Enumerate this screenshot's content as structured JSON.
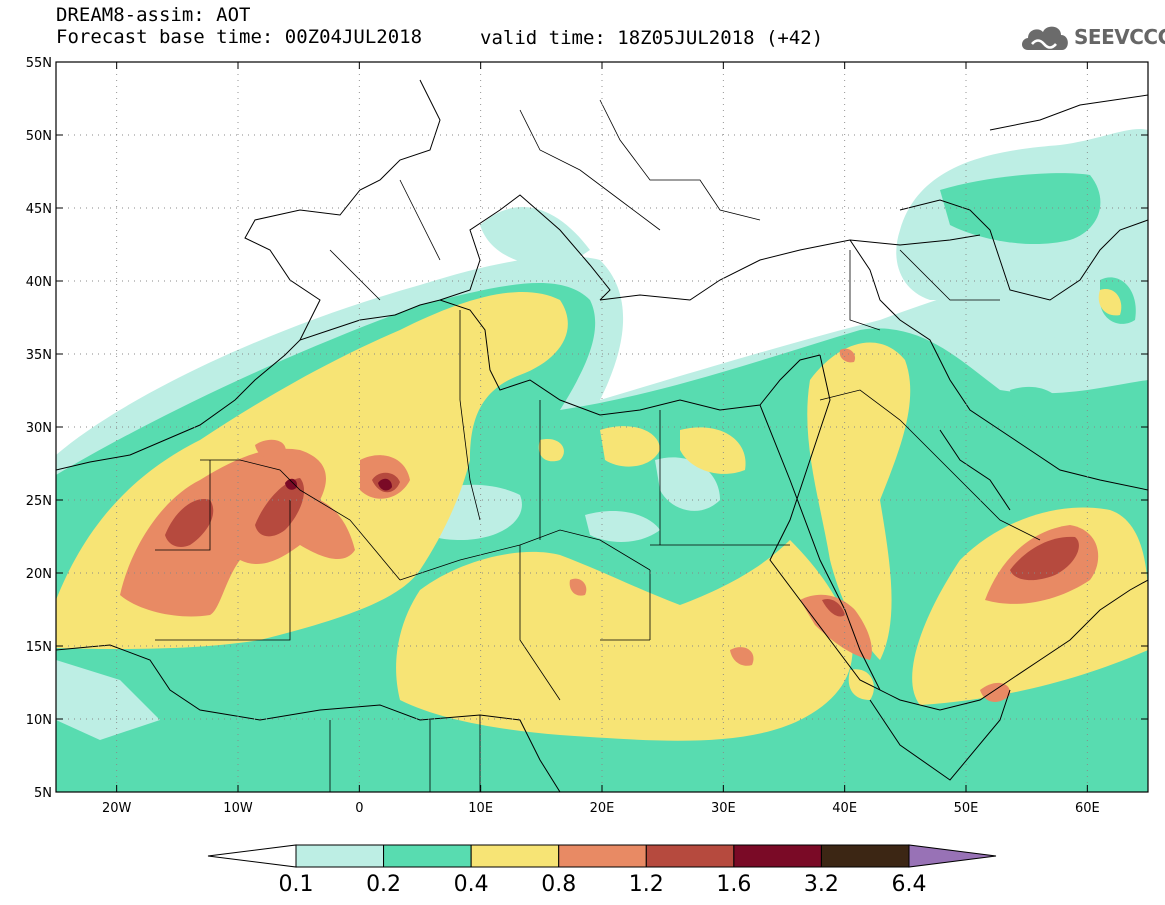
{
  "header": {
    "title": "DREAM8-assim: AOT",
    "subtitle": "Forecast base time: 00Z04JUL2018",
    "valid_time": "valid time: 18Z05JUL2018 (+42)"
  },
  "logo": {
    "text": "SEEVCCC",
    "icon": "cloud-icon"
  },
  "map": {
    "variable": "AOT",
    "lon_range": [
      -25,
      65
    ],
    "lat_range": [
      5,
      55
    ],
    "lat_ticks": [
      "55N",
      "50N",
      "45N",
      "40N",
      "35N",
      "30N",
      "25N",
      "20N",
      "15N",
      "10N",
      "5N"
    ],
    "lon_ticks": [
      "20W",
      "10W",
      "0",
      "10E",
      "20E",
      "30E",
      "40E",
      "50E",
      "60E"
    ],
    "gridlines": "dotted"
  },
  "colorbar": {
    "levels": [
      "0.1",
      "0.2",
      "0.4",
      "0.8",
      "1.2",
      "1.6",
      "3.2",
      "6.4"
    ],
    "colors": [
      "#ffffff",
      "#bdeee4",
      "#58dcb0",
      "#f7e475",
      "#e88a64",
      "#b64a3e",
      "#7a0a26",
      "#3c2614",
      "#9872b6"
    ]
  }
}
